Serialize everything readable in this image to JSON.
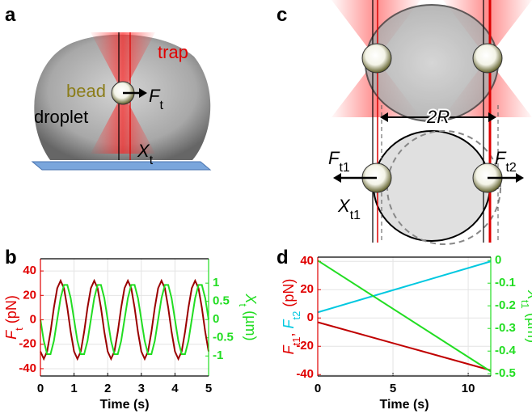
{
  "panels": {
    "a": {
      "letter": "a",
      "bead": "bead",
      "trap": "trap",
      "droplet": "droplet",
      "force": {
        "symbol": "F",
        "subscript": "t"
      },
      "position": {
        "symbol": "X",
        "subscript": "t"
      }
    },
    "b": {
      "letter": "b"
    },
    "c": {
      "letter": "c",
      "diameter": {
        "symbol": "2R"
      },
      "force1": {
        "symbol": "F",
        "subscript": "t1"
      },
      "force2": {
        "symbol": "F",
        "subscript": "t2"
      },
      "position": {
        "symbol": "X",
        "subscript": "t1"
      }
    },
    "d": {
      "letter": "d"
    }
  },
  "chart_data": [
    {
      "type": "line",
      "xlabel": "Time (s)",
      "ylabel": [
        {
          "text": "F",
          "style": "italic",
          "color": "#e00000"
        },
        {
          "text": "t",
          "style": "sub",
          "color": "#e00000"
        },
        {
          "text": " (pN)",
          "color": "#e00000"
        }
      ],
      "y2label": [
        {
          "text": "X",
          "style": "italic",
          "color": "#22dd22"
        },
        {
          "text": "t",
          "style": "sub",
          "color": "#22dd22"
        },
        {
          "text": " (µm)",
          "color": "#22dd22"
        }
      ],
      "x": [
        0,
        0.1,
        0.2,
        0.3,
        0.4,
        0.5,
        0.6,
        0.7,
        0.8,
        0.9,
        1,
        1.1,
        1.2,
        1.3,
        1.4,
        1.5,
        1.6,
        1.7,
        1.8,
        1.9,
        2,
        2.1,
        2.2,
        2.3,
        2.4,
        2.5,
        2.6,
        2.7,
        2.8,
        2.9,
        3,
        3.1,
        3.2,
        3.3,
        3.4,
        3.5,
        3.6,
        3.7,
        3.8,
        3.9,
        4,
        4.1,
        4.2,
        4.3,
        4.4,
        4.5,
        4.6,
        4.7,
        4.8,
        4.9,
        5
      ],
      "series": [
        {
          "color": "#9a0000",
          "values": [
            -25.9,
            -32,
            -25.9,
            -9.9,
            9.9,
            25.9,
            32,
            25.9,
            9.9,
            -9.9,
            -25.9,
            -32,
            -25.9,
            -9.9,
            9.9,
            25.9,
            32,
            25.9,
            9.9,
            -9.9,
            -25.9,
            -32,
            -25.9,
            -9.9,
            9.9,
            25.9,
            32,
            25.9,
            9.9,
            -9.9,
            -25.9,
            -32,
            -25.9,
            -9.9,
            9.9,
            25.9,
            32,
            25.9,
            9.9,
            -9.9,
            -25.9,
            -32,
            -25.9,
            -9.9,
            9.9,
            25.9,
            32,
            25.9,
            9.9,
            -9.9,
            -25.9
          ]
        },
        {
          "color": "#22dd22",
          "axis": "y2",
          "values": [
            0,
            -0.588,
            -0.951,
            -0.951,
            -0.588,
            0,
            0.588,
            0.951,
            0.951,
            0.588,
            0,
            -0.588,
            -0.951,
            -0.951,
            -0.588,
            0,
            0.588,
            0.951,
            0.951,
            0.588,
            0,
            -0.588,
            -0.951,
            -0.951,
            -0.588,
            0,
            0.588,
            0.951,
            0.951,
            0.588,
            0,
            -0.588,
            -0.951,
            -0.951,
            -0.588,
            0,
            0.588,
            0.951,
            0.951,
            0.588,
            0,
            -0.588,
            -0.951,
            -0.951,
            -0.588,
            0,
            0.588,
            0.951,
            0.951,
            0.588,
            0
          ]
        }
      ],
      "xlim": [
        0,
        5
      ],
      "xticks": [
        0,
        1,
        2,
        3,
        4,
        5
      ],
      "ylim": [
        -46,
        50
      ],
      "yticks": [
        -40,
        -20,
        0,
        20,
        40
      ],
      "y2lim": [
        -1.55,
        1.67
      ],
      "y2ticks": [
        -1,
        -0.5,
        0,
        0.5,
        1
      ],
      "ytick_color": "#e00000",
      "y2tick_color": "#22dd22",
      "grid": true
    },
    {
      "type": "line",
      "xlabel": "Time (s)",
      "ylabel": [
        {
          "text": "F",
          "style": "italic",
          "color": "#e00000"
        },
        {
          "text": "t1",
          "style": "sub",
          "color": "#e00000"
        },
        {
          "text": ", ",
          "color": "#e00000"
        },
        {
          "text": "F",
          "style": "italic",
          "color": "#00c8e0"
        },
        {
          "text": "t2",
          "style": "sub",
          "color": "#00c8e0"
        },
        {
          "text": " (pN)",
          "color": "#e00000"
        }
      ],
      "y2label": [
        {
          "text": "X",
          "style": "italic",
          "color": "#22dd22"
        },
        {
          "text": "t1",
          "style": "sub",
          "color": "#22dd22"
        },
        {
          "text": " (µm)",
          "color": "#22dd22"
        }
      ],
      "x": [
        0,
        11.5
      ],
      "series": [
        {
          "color": "#c00000",
          "values": [
            -3,
            -37
          ]
        },
        {
          "color": "#00c8e0",
          "values": [
            4,
            40
          ]
        },
        {
          "color": "#22dd22",
          "axis": "y2",
          "values": [
            0,
            -0.49
          ]
        }
      ],
      "xlim": [
        0,
        11.5
      ],
      "xticks": [
        0,
        5,
        10
      ],
      "ylim": [
        -41,
        43
      ],
      "yticks": [
        -40,
        -20,
        0,
        20,
        40
      ],
      "y2lim": [
        -0.51,
        0.015
      ],
      "y2ticks": [
        -0.5,
        -0.4,
        -0.3,
        -0.2,
        -0.1,
        0
      ],
      "ytick_color": "#e00000",
      "y2tick_color": "#22dd22",
      "grid": true
    }
  ]
}
